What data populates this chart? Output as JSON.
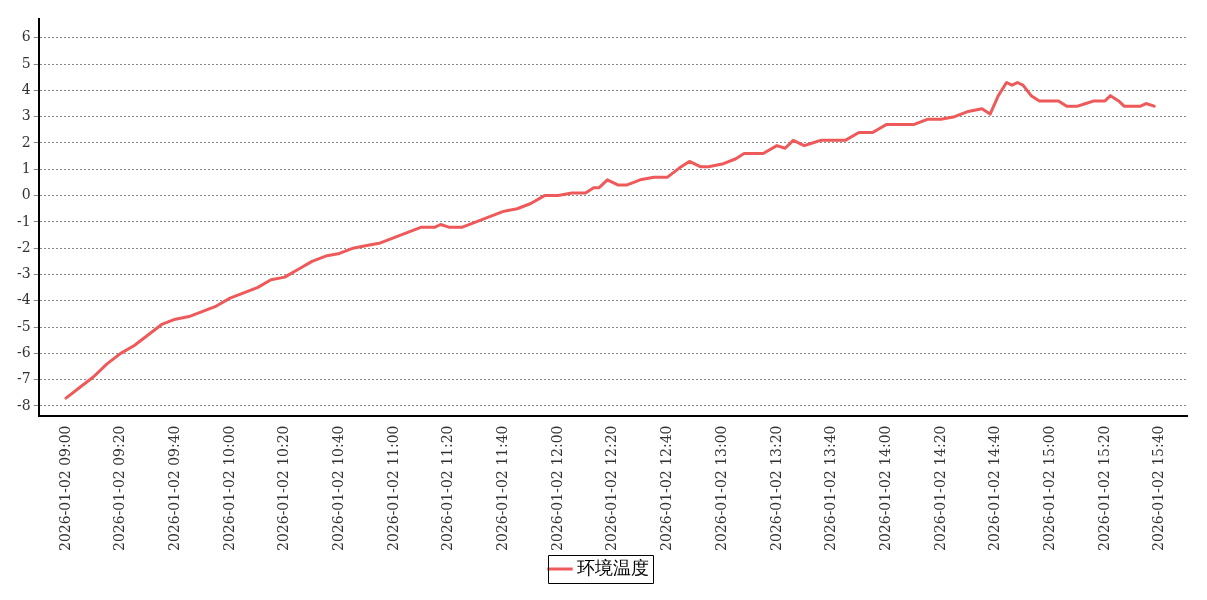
{
  "chart_data": {
    "type": "line",
    "legend": "bottom",
    "grid": "y",
    "line_style": "solid",
    "marker": "none",
    "xlim": [
      "2026-01-02T08:50",
      "2026-01-02T15:50"
    ],
    "xticks": [
      {
        "value": "2026-01-02T09:00",
        "label": "2026-01-02 09:00"
      },
      {
        "value": "2026-01-02T09:20",
        "label": "2026-01-02 09:20"
      },
      {
        "value": "2026-01-02T09:40",
        "label": "2026-01-02 09:40"
      },
      {
        "value": "2026-01-02T10:00",
        "label": "2026-01-02 10:00"
      },
      {
        "value": "2026-01-02T10:20",
        "label": "2026-01-02 10:20"
      },
      {
        "value": "2026-01-02T10:40",
        "label": "2026-01-02 10:40"
      },
      {
        "value": "2026-01-02T11:00",
        "label": "2026-01-02 11:00"
      },
      {
        "value": "2026-01-02T11:20",
        "label": "2026-01-02 11:20"
      },
      {
        "value": "2026-01-02T11:40",
        "label": "2026-01-02 11:40"
      },
      {
        "value": "2026-01-02T12:00",
        "label": "2026-01-02 12:00"
      },
      {
        "value": "2026-01-02T12:20",
        "label": "2026-01-02 12:20"
      },
      {
        "value": "2026-01-02T12:40",
        "label": "2026-01-02 12:40"
      },
      {
        "value": "2026-01-02T13:00",
        "label": "2026-01-02 13:00"
      },
      {
        "value": "2026-01-02T13:20",
        "label": "2026-01-02 13:20"
      },
      {
        "value": "2026-01-02T13:40",
        "label": "2026-01-02 13:40"
      },
      {
        "value": "2026-01-02T14:00",
        "label": "2026-01-02 14:00"
      },
      {
        "value": "2026-01-02T14:20",
        "label": "2026-01-02 14:20"
      },
      {
        "value": "2026-01-02T14:40",
        "label": "2026-01-02 14:40"
      },
      {
        "value": "2026-01-02T15:00",
        "label": "2026-01-02 15:00"
      },
      {
        "value": "2026-01-02T15:20",
        "label": "2026-01-02 15:20"
      },
      {
        "value": "2026-01-02T15:40",
        "label": "2026-01-02 15:40"
      }
    ],
    "ylim": [
      -8.4,
      6.7
    ],
    "yticks": [
      -8,
      -7,
      -6,
      -5,
      -4,
      -3,
      -2,
      -1,
      0,
      1,
      2,
      3,
      4,
      5,
      6
    ],
    "x": [
      "2026-01-02T09:00",
      "2026-01-02T09:05",
      "2026-01-02T09:10",
      "2026-01-02T09:15",
      "2026-01-02T09:20",
      "2026-01-02T09:25",
      "2026-01-02T09:30",
      "2026-01-02T09:35",
      "2026-01-02T09:40",
      "2026-01-02T09:45",
      "2026-01-02T09:50",
      "2026-01-02T09:55",
      "2026-01-02T10:00",
      "2026-01-02T10:05",
      "2026-01-02T10:10",
      "2026-01-02T10:15",
      "2026-01-02T10:20",
      "2026-01-02T10:25",
      "2026-01-02T10:30",
      "2026-01-02T10:35",
      "2026-01-02T10:40",
      "2026-01-02T10:45",
      "2026-01-02T10:50",
      "2026-01-02T10:55",
      "2026-01-02T11:00",
      "2026-01-02T11:05",
      "2026-01-02T11:10",
      "2026-01-02T11:15",
      "2026-01-02T11:17",
      "2026-01-02T11:20",
      "2026-01-02T11:25",
      "2026-01-02T11:30",
      "2026-01-02T11:35",
      "2026-01-02T11:40",
      "2026-01-02T11:45",
      "2026-01-02T11:50",
      "2026-01-02T11:55",
      "2026-01-02T12:00",
      "2026-01-02T12:05",
      "2026-01-02T12:10",
      "2026-01-02T12:13",
      "2026-01-02T12:15",
      "2026-01-02T12:18",
      "2026-01-02T12:22",
      "2026-01-02T12:25",
      "2026-01-02T12:30",
      "2026-01-02T12:35",
      "2026-01-02T12:40",
      "2026-01-02T12:45",
      "2026-01-02T12:48",
      "2026-01-02T12:52",
      "2026-01-02T12:55",
      "2026-01-02T13:00",
      "2026-01-02T13:05",
      "2026-01-02T13:08",
      "2026-01-02T13:12",
      "2026-01-02T13:15",
      "2026-01-02T13:20",
      "2026-01-02T13:23",
      "2026-01-02T13:26",
      "2026-01-02T13:30",
      "2026-01-02T13:33",
      "2026-01-02T13:36",
      "2026-01-02T13:45",
      "2026-01-02T13:50",
      "2026-01-02T13:55",
      "2026-01-02T14:00",
      "2026-01-02T14:05",
      "2026-01-02T14:10",
      "2026-01-02T14:15",
      "2026-01-02T14:20",
      "2026-01-02T14:25",
      "2026-01-02T14:30",
      "2026-01-02T14:35",
      "2026-01-02T14:38",
      "2026-01-02T14:41",
      "2026-01-02T14:44",
      "2026-01-02T14:46",
      "2026-01-02T14:48",
      "2026-01-02T14:50",
      "2026-01-02T14:53",
      "2026-01-02T14:56",
      "2026-01-02T15:00",
      "2026-01-02T15:03",
      "2026-01-02T15:06",
      "2026-01-02T15:10",
      "2026-01-02T15:13",
      "2026-01-02T15:16",
      "2026-01-02T15:20",
      "2026-01-02T15:22",
      "2026-01-02T15:25",
      "2026-01-02T15:27",
      "2026-01-02T15:33",
      "2026-01-02T15:35",
      "2026-01-02T15:38"
    ],
    "series": [
      {
        "name": "环境温度",
        "color": "#ee5a5a",
        "values": [
          -7.7,
          -7.3,
          -6.9,
          -6.4,
          -6.0,
          -5.7,
          -5.3,
          -4.9,
          -4.7,
          -4.6,
          -4.4,
          -4.2,
          -3.9,
          -3.7,
          -3.5,
          -3.2,
          -3.1,
          -2.8,
          -2.5,
          -2.3,
          -2.2,
          -2.0,
          -1.9,
          -1.8,
          -1.6,
          -1.4,
          -1.2,
          -1.2,
          -1.1,
          -1.2,
          -1.2,
          -1.0,
          -0.8,
          -0.6,
          -0.5,
          -0.3,
          0.0,
          0.0,
          0.1,
          0.1,
          0.3,
          0.3,
          0.6,
          0.4,
          0.4,
          0.6,
          0.7,
          0.7,
          1.1,
          1.3,
          1.1,
          1.1,
          1.2,
          1.4,
          1.6,
          1.6,
          1.6,
          1.9,
          1.8,
          2.1,
          1.9,
          2.0,
          2.1,
          2.1,
          2.4,
          2.4,
          2.7,
          2.7,
          2.7,
          2.9,
          2.9,
          3.0,
          3.2,
          3.3,
          3.1,
          3.8,
          4.3,
          4.2,
          4.3,
          4.2,
          3.8,
          3.6,
          3.6,
          3.6,
          3.4,
          3.4,
          3.5,
          3.6,
          3.6,
          3.8,
          3.6,
          3.4,
          3.4,
          3.5,
          3.4
        ]
      }
    ]
  }
}
